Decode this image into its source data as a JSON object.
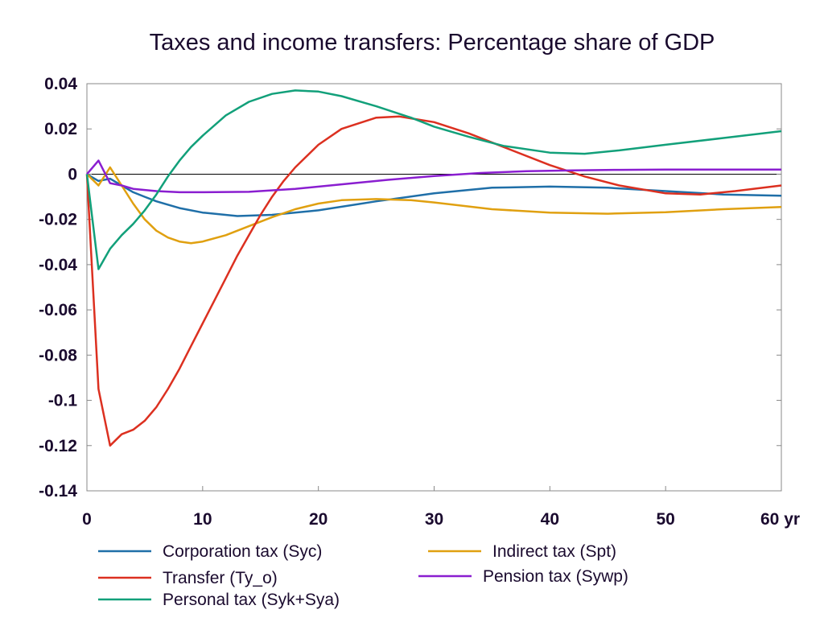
{
  "chart_data": {
    "type": "line",
    "title": "Taxes and income transfers: Percentage share of GDP",
    "xlabel": "",
    "ylabel": "",
    "xlim": [
      0,
      60
    ],
    "ylim": [
      -0.14,
      0.04
    ],
    "x_ticks": [
      0,
      10,
      20,
      30,
      40,
      50,
      60
    ],
    "x_tick_labels": [
      "0",
      "10",
      "20",
      "30",
      "40",
      "50",
      "60 yr"
    ],
    "y_ticks": [
      0.04,
      0.02,
      0,
      -0.02,
      -0.04,
      -0.06,
      -0.08,
      -0.1,
      -0.12,
      -0.14
    ],
    "y_tick_labels": [
      "0.04",
      "0.02",
      "0",
      "-0.02",
      "-0.04",
      "-0.06",
      "-0.08",
      "-0.1",
      "-0.12",
      "-0.14"
    ],
    "grid": false,
    "legend_position": "bottom",
    "series": [
      {
        "name": "Corporation tax (Syc)",
        "color": "#1f6fa8",
        "x": [
          0,
          1,
          2,
          3,
          4,
          5,
          6,
          8,
          10,
          13,
          16,
          20,
          25,
          30,
          35,
          40,
          45,
          50,
          55,
          60
        ],
        "y": [
          0,
          -0.003,
          -0.002,
          -0.005,
          -0.008,
          -0.01,
          -0.012,
          -0.015,
          -0.017,
          -0.0185,
          -0.018,
          -0.016,
          -0.012,
          -0.0085,
          -0.006,
          -0.0055,
          -0.006,
          -0.0075,
          -0.009,
          -0.0095
        ]
      },
      {
        "name": "Indirect tax (Spt)",
        "color": "#e0a010",
        "x": [
          0,
          1,
          2,
          3,
          4,
          5,
          6,
          7,
          8,
          9,
          10,
          12,
          14,
          16,
          18,
          20,
          22,
          25,
          28,
          30,
          35,
          40,
          45,
          50,
          55,
          60
        ],
        "y": [
          0,
          -0.005,
          0.003,
          -0.005,
          -0.013,
          -0.02,
          -0.025,
          -0.028,
          -0.0298,
          -0.0305,
          -0.0298,
          -0.027,
          -0.023,
          -0.019,
          -0.0155,
          -0.013,
          -0.0115,
          -0.011,
          -0.0115,
          -0.0125,
          -0.0155,
          -0.017,
          -0.0175,
          -0.0168,
          -0.0155,
          -0.0145
        ]
      },
      {
        "name": "Transfer (Ty_o)",
        "color": "#dc3020",
        "x": [
          0,
          1,
          2,
          3,
          4,
          5,
          6,
          7,
          8,
          9,
          10,
          11,
          12,
          13,
          14,
          15,
          16,
          17,
          18,
          20,
          22,
          25,
          27,
          30,
          33,
          36,
          40,
          43,
          46,
          50,
          53,
          56,
          60
        ],
        "y": [
          0,
          -0.095,
          -0.12,
          -0.115,
          -0.113,
          -0.109,
          -0.103,
          -0.095,
          -0.086,
          -0.076,
          -0.066,
          -0.056,
          -0.046,
          -0.036,
          -0.027,
          -0.018,
          -0.01,
          -0.003,
          0.003,
          0.013,
          0.02,
          0.025,
          0.0255,
          0.023,
          0.018,
          0.012,
          0.004,
          -0.001,
          -0.005,
          -0.0085,
          -0.009,
          -0.0075,
          -0.005
        ]
      },
      {
        "name": "Pension tax (Sywp)",
        "color": "#8a1ed0",
        "x": [
          0,
          1,
          2,
          3,
          4,
          6,
          8,
          10,
          14,
          18,
          22,
          26,
          30,
          34,
          38,
          42,
          46,
          50,
          55,
          60
        ],
        "y": [
          0,
          0.006,
          -0.004,
          -0.005,
          -0.0065,
          -0.0075,
          -0.008,
          -0.008,
          -0.0078,
          -0.0065,
          -0.0045,
          -0.0025,
          -0.0008,
          0.0005,
          0.0013,
          0.0017,
          0.0019,
          0.002,
          0.002,
          0.002
        ]
      },
      {
        "name": "Personal tax (Syk+Sya)",
        "color": "#12a07a",
        "x": [
          0,
          1,
          2,
          3,
          4,
          5,
          6,
          7,
          8,
          9,
          10,
          12,
          14,
          16,
          18,
          20,
          22,
          25,
          28,
          30,
          33,
          36,
          40,
          43,
          46,
          50,
          55,
          60
        ],
        "y": [
          0,
          -0.042,
          -0.033,
          -0.027,
          -0.022,
          -0.016,
          -0.009,
          -0.001,
          0.006,
          0.012,
          0.017,
          0.026,
          0.032,
          0.0355,
          0.037,
          0.0365,
          0.0345,
          0.03,
          0.025,
          0.021,
          0.0165,
          0.0125,
          0.0095,
          0.009,
          0.0105,
          0.013,
          0.016,
          0.019
        ]
      }
    ]
  }
}
